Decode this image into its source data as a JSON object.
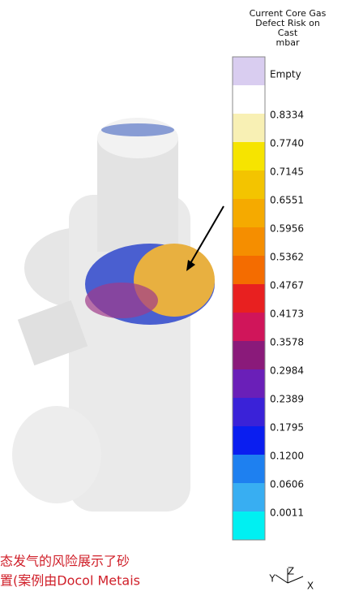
{
  "legend": {
    "title_lines": [
      "Current Core Gas",
      "Defect Risk on",
      "Cast",
      "mbar"
    ],
    "empty_label": "Empty",
    "empty_color": "#d9cdf0",
    "top_color": "#ffffff",
    "labels": [
      "0.8334",
      "0.7740",
      "0.7145",
      "0.6551",
      "0.5956",
      "0.5362",
      "0.4767",
      "0.4173",
      "0.3578",
      "0.2984",
      "0.2389",
      "0.1795",
      "0.1200",
      "0.0606",
      "0.0011"
    ],
    "colors": [
      "#f8f0b4",
      "#f6e400",
      "#f3c400",
      "#f5aa00",
      "#f58e00",
      "#f46c00",
      "#e82020",
      "#d0155a",
      "#8a1a7a",
      "#6a1fb8",
      "#3a22d8",
      "#0a1ef0",
      "#1e80f0",
      "#38aef2",
      "#00f0f2"
    ]
  },
  "caption": {
    "lines": [
      "态发气的风险展示了砂",
      "置(案例由Docol Metais"
    ]
  },
  "axes": {
    "y": "Y",
    "z": "Z",
    "x": "X"
  }
}
